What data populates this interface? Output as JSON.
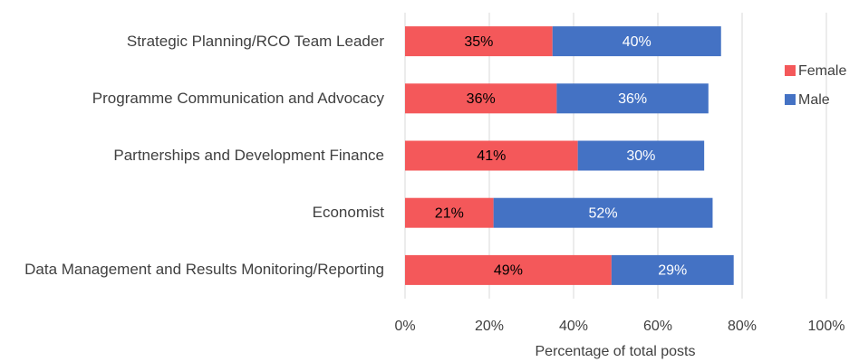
{
  "chart_data": {
    "type": "stacked_barh",
    "x_label": "Percentage of total posts",
    "categories": [
      "Strategic Planning/RCO Team Leader",
      "Programme Communication and Advocacy",
      "Partnerships and Development Finance",
      "Economist",
      "Data Management and Results Monitoring/Reporting"
    ],
    "series": [
      {
        "name": "Female",
        "color": "#f4585a",
        "values": [
          35,
          36,
          41,
          21,
          49
        ],
        "value_labels": [
          "35%",
          "36%",
          "41%",
          "21%",
          "49%"
        ]
      },
      {
        "name": "Male",
        "color": "#4472c4",
        "values": [
          40,
          36,
          30,
          52,
          29
        ],
        "value_labels": [
          "40%",
          "36%",
          "30%",
          "52%",
          "29%"
        ]
      }
    ],
    "xlim": [
      0,
      100
    ],
    "xticks": [
      {
        "value": 0,
        "label": "0%"
      },
      {
        "value": 20,
        "label": "20%"
      },
      {
        "value": 40,
        "label": "40%"
      },
      {
        "value": 60,
        "label": "60%"
      },
      {
        "value": 80,
        "label": "80%"
      },
      {
        "value": 100,
        "label": "100%"
      }
    ],
    "grid": true,
    "legend": "right"
  }
}
